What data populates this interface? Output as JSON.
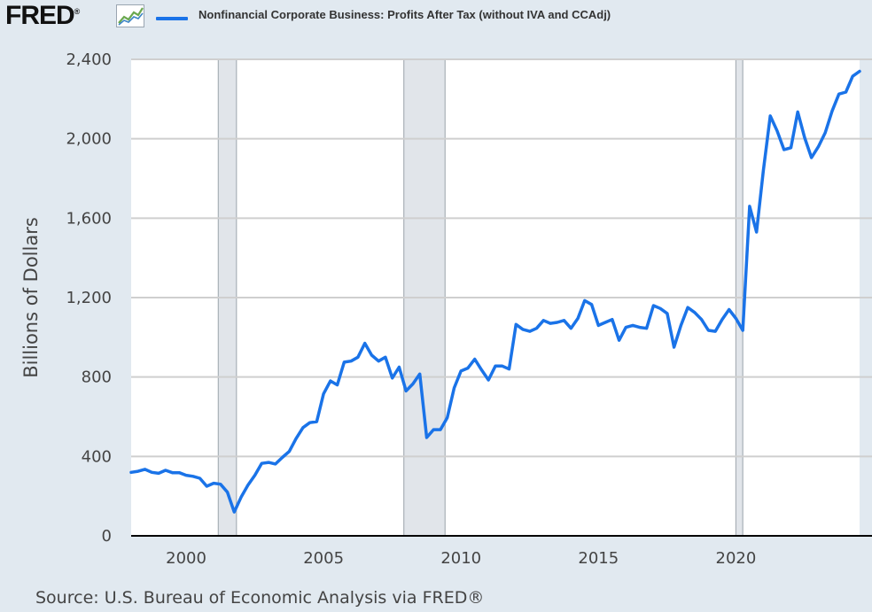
{
  "header": {
    "logo_text": "FRED",
    "logo_reg": "®",
    "logo_icon": "line-chart-icon"
  },
  "colors": {
    "series": "#1a73e8",
    "background": "#e1e9f0",
    "plot_background": "#ffffff",
    "recession_shade": "#e1e5ea",
    "gridline": "#cfcfcf",
    "text": "#444444"
  },
  "chart_data": {
    "type": "line",
    "title": "",
    "xlabel": "",
    "ylabel": "Billions of Dollars",
    "xlim": [
      1998.0,
      2024.5
    ],
    "ylim": [
      0,
      2400
    ],
    "grid": true,
    "legend_position": "top",
    "x_ticks": [
      {
        "value": 2000,
        "label": "2000"
      },
      {
        "value": 2005,
        "label": "2005"
      },
      {
        "value": 2010,
        "label": "2010"
      },
      {
        "value": 2015,
        "label": "2015"
      },
      {
        "value": 2020,
        "label": "2020"
      }
    ],
    "y_ticks": [
      {
        "value": 0,
        "label": "0"
      },
      {
        "value": 400,
        "label": "400"
      },
      {
        "value": 800,
        "label": "800"
      },
      {
        "value": 1200,
        "label": "1,200"
      },
      {
        "value": 1600,
        "label": "1,600"
      },
      {
        "value": 2000,
        "label": "2,000"
      },
      {
        "value": 2400,
        "label": "2,400"
      }
    ],
    "recessions": [
      {
        "start": 2001.17,
        "end": 2001.83
      },
      {
        "start": 2007.92,
        "end": 2009.42
      },
      {
        "start": 2020.0,
        "end": 2020.25
      }
    ],
    "series": [
      {
        "name": "Nonfinancial Corporate Business: Profits After Tax (without IVA and CCAdj)",
        "x": [
          1998.0,
          1998.25,
          1998.5,
          1998.75,
          1999.0,
          1999.25,
          1999.5,
          1999.75,
          2000.0,
          2000.25,
          2000.5,
          2000.75,
          2001.0,
          2001.25,
          2001.5,
          2001.75,
          2002.0,
          2002.25,
          2002.5,
          2002.75,
          2003.0,
          2003.25,
          2003.5,
          2003.75,
          2004.0,
          2004.25,
          2004.5,
          2004.75,
          2005.0,
          2005.25,
          2005.5,
          2005.75,
          2006.0,
          2006.25,
          2006.5,
          2006.75,
          2007.0,
          2007.25,
          2007.5,
          2007.75,
          2008.0,
          2008.25,
          2008.5,
          2008.75,
          2009.0,
          2009.25,
          2009.5,
          2009.75,
          2010.0,
          2010.25,
          2010.5,
          2010.75,
          2011.0,
          2011.25,
          2011.5,
          2011.75,
          2012.0,
          2012.25,
          2012.5,
          2012.75,
          2013.0,
          2013.25,
          2013.5,
          2013.75,
          2014.0,
          2014.25,
          2014.5,
          2014.75,
          2015.0,
          2015.25,
          2015.5,
          2015.75,
          2016.0,
          2016.25,
          2016.5,
          2016.75,
          2017.0,
          2017.25,
          2017.5,
          2017.75,
          2018.0,
          2018.25,
          2018.5,
          2018.75,
          2019.0,
          2019.25,
          2019.5,
          2019.75,
          2020.0,
          2020.25,
          2020.5,
          2020.75,
          2021.0,
          2021.25,
          2021.5,
          2021.75,
          2022.0,
          2022.25,
          2022.5,
          2022.75,
          2023.0,
          2023.25,
          2023.5,
          2023.75,
          2024.0,
          2024.25,
          2024.5
        ],
        "values": [
          320,
          325,
          335,
          320,
          315,
          330,
          318,
          318,
          305,
          300,
          290,
          250,
          265,
          260,
          220,
          120,
          195,
          255,
          305,
          365,
          370,
          362,
          395,
          425,
          490,
          545,
          570,
          575,
          715,
          780,
          760,
          875,
          880,
          900,
          970,
          910,
          880,
          900,
          795,
          850,
          730,
          765,
          815,
          495,
          535,
          535,
          595,
          745,
          830,
          845,
          890,
          835,
          785,
          855,
          855,
          840,
          1065,
          1040,
          1030,
          1045,
          1085,
          1070,
          1075,
          1085,
          1045,
          1095,
          1185,
          1165,
          1060,
          1075,
          1090,
          985,
          1050,
          1060,
          1050,
          1045,
          1160,
          1145,
          1120,
          950,
          1060,
          1150,
          1125,
          1090,
          1035,
          1030,
          1090,
          1140,
          1095,
          1035,
          1660,
          1530,
          1840,
          2115,
          2040,
          1945,
          1955,
          2135,
          2005,
          1905,
          1960,
          2030,
          2140,
          2225,
          2235,
          2315,
          2340
        ]
      }
    ]
  },
  "source": "Source: U.S. Bureau of Economic Analysis via FRED®"
}
